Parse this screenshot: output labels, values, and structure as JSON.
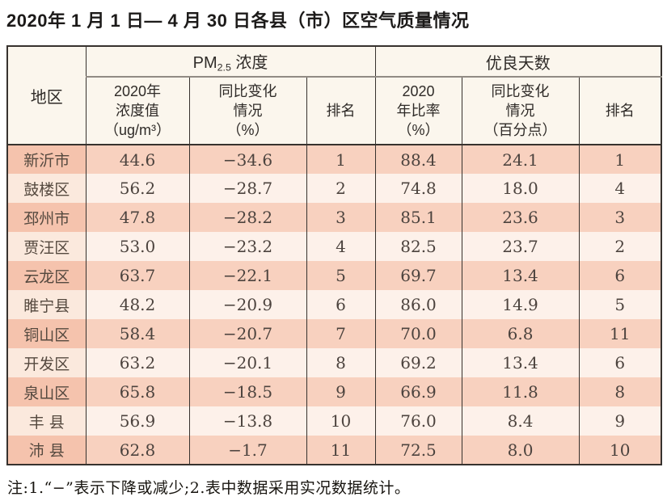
{
  "title": "2020年 1 月 1 日— 4 月 30 日各县（市）区空气质量情况",
  "table": {
    "region_header": "地区",
    "groups": {
      "pm25_base": "PM",
      "pm25_sub": "2.5",
      "pm25_rest": " 浓度",
      "good_days": "优良天数"
    },
    "subheaders": {
      "pm25_value": "2020年\n浓度值\n（ug/m³）",
      "pm25_change": "同比变化\n情况\n（%）",
      "pm25_rank": "排名",
      "good_ratio": "2020\n年比率\n（%）",
      "good_change": "同比变化\n情况\n（百分点）",
      "good_rank": "排名"
    },
    "rows": [
      {
        "region": "新沂市",
        "pm25_value": "44.6",
        "pm25_change": "−34.6",
        "pm25_rank": "1",
        "good_ratio": "88.4",
        "good_change": "24.1",
        "good_rank": "1"
      },
      {
        "region": "鼓楼区",
        "pm25_value": "56.2",
        "pm25_change": "−28.7",
        "pm25_rank": "2",
        "good_ratio": "74.8",
        "good_change": "18.0",
        "good_rank": "4"
      },
      {
        "region": "邳州市",
        "pm25_value": "47.8",
        "pm25_change": "−28.2",
        "pm25_rank": "3",
        "good_ratio": "85.1",
        "good_change": "23.6",
        "good_rank": "3"
      },
      {
        "region": "贾汪区",
        "pm25_value": "53.0",
        "pm25_change": "−23.2",
        "pm25_rank": "4",
        "good_ratio": "82.5",
        "good_change": "23.7",
        "good_rank": "2"
      },
      {
        "region": "云龙区",
        "pm25_value": "63.7",
        "pm25_change": "−22.1",
        "pm25_rank": "5",
        "good_ratio": "69.7",
        "good_change": "13.4",
        "good_rank": "6"
      },
      {
        "region": "睢宁县",
        "pm25_value": "48.2",
        "pm25_change": "−20.9",
        "pm25_rank": "6",
        "good_ratio": "86.0",
        "good_change": "14.9",
        "good_rank": "5"
      },
      {
        "region": "铜山区",
        "pm25_value": "58.4",
        "pm25_change": "−20.7",
        "pm25_rank": "7",
        "good_ratio": "70.0",
        "good_change": "6.8",
        "good_rank": "11"
      },
      {
        "region": "开发区",
        "pm25_value": "63.2",
        "pm25_change": "−20.1",
        "pm25_rank": "8",
        "good_ratio": "69.2",
        "good_change": "13.4",
        "good_rank": "6"
      },
      {
        "region": "泉山区",
        "pm25_value": "65.8",
        "pm25_change": "−18.5",
        "pm25_rank": "9",
        "good_ratio": "66.9",
        "good_change": "11.8",
        "good_rank": "8"
      },
      {
        "region": "丰 县",
        "pm25_value": "56.9",
        "pm25_change": "−13.8",
        "pm25_rank": "10",
        "good_ratio": "76.0",
        "good_change": "8.4",
        "good_rank": "9"
      },
      {
        "region": "沛 县",
        "pm25_value": "62.8",
        "pm25_change": "−1.7",
        "pm25_rank": "11",
        "good_ratio": "72.5",
        "good_change": "8.0",
        "good_rank": "10"
      }
    ]
  },
  "footnote": "注:1.“−”表示下降或减少;2.表中数据采用实况数据统计。",
  "colors": {
    "row_odd": "#f8d1bf",
    "row_even": "#fdf1ea",
    "region_odd": "#f5c3ad",
    "region_even": "#fbe9dd",
    "header_bg": "#fbf6ed",
    "grid_line": "#37322e",
    "group_underline": "#918b84",
    "data_text": "#4c433e"
  }
}
